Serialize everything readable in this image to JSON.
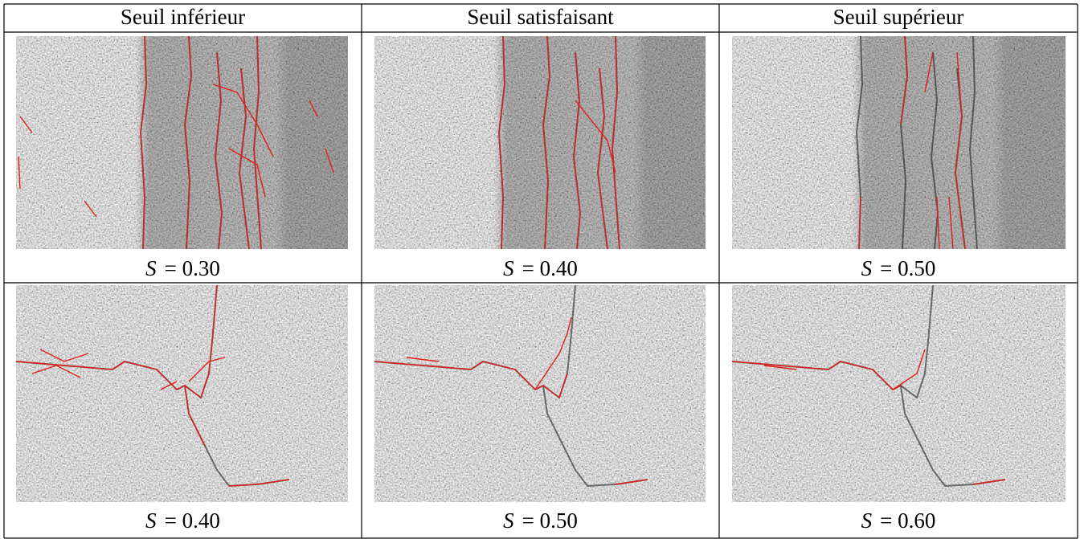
{
  "table": {
    "headers": [
      "Seuil inférieur",
      "Seuil satisfaisant",
      "Seuil supérieur"
    ],
    "rows": [
      {
        "captions": [
          {
            "symbol": "S",
            "relation": "= 0.30"
          },
          {
            "symbol": "S",
            "relation": "= 0.40"
          },
          {
            "symbol": "S",
            "relation": "= 0.50"
          }
        ]
      },
      {
        "captions": [
          {
            "symbol": "S",
            "relation": "= 0.40"
          },
          {
            "symbol": "S",
            "relation": "= 0.50"
          },
          {
            "symbol": "S",
            "relation": "= 0.60"
          }
        ]
      }
    ]
  }
}
